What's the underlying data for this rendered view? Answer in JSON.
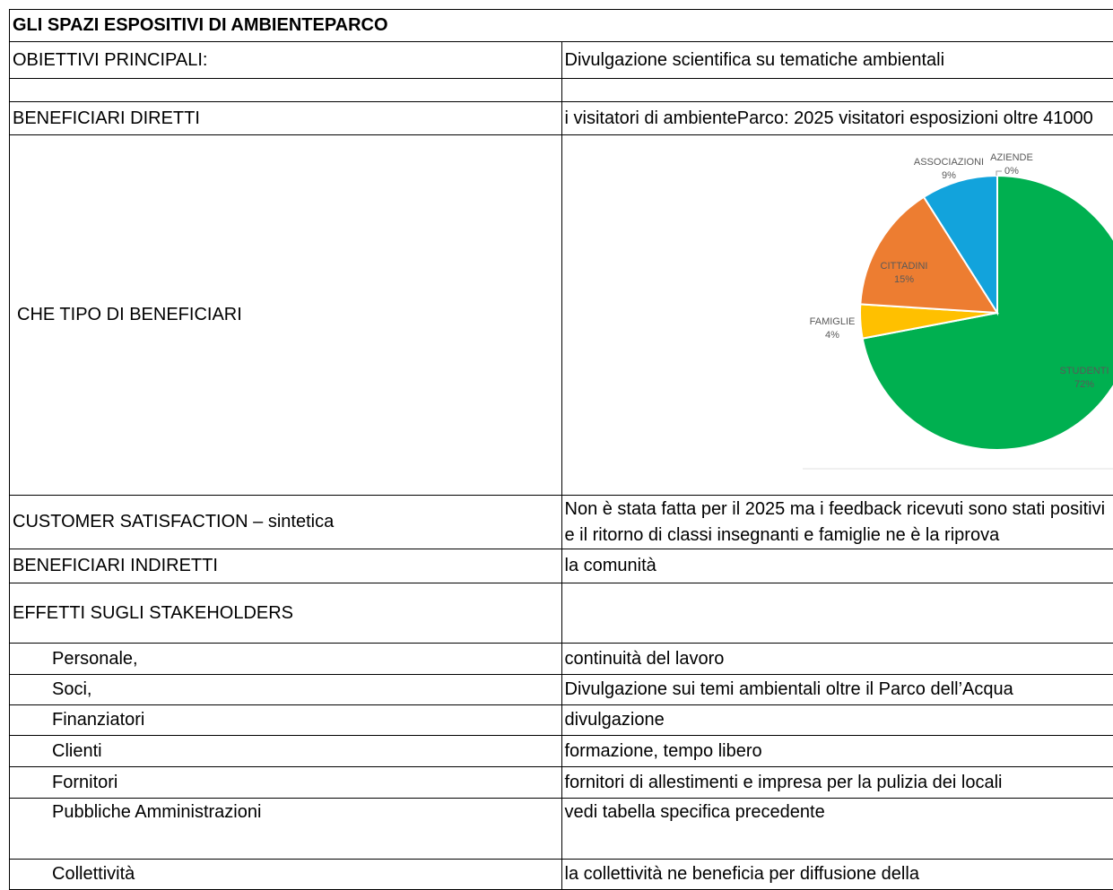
{
  "title": "GLI SPAZI ESPOSITIVI DI AMBIENTEPARCO",
  "rows": [
    [
      "OBIETTIVI PRINCIPALI:",
      "Divulgazione scientifica su tematiche ambientali"
    ],
    [
      "BENEFICIARI DIRETTI",
      "i visitatori di ambienteParco: 2025 visitatori esposizioni oltre 41000"
    ],
    [
      "CHE TIPO DI BENEFICIARI"
    ],
    [
      "CUSTOMER SATISFACTION – sintetica",
      "Non è stata fatta per il 2025 ma i feedback ricevuti sono stati positivi e il ritorno di classi insegnanti e famiglie ne è la riprova"
    ],
    [
      "BENEFICIARI INDIRETTI",
      "la comunità"
    ],
    [
      "EFFETTI SUGLI STAKEHOLDERS"
    ],
    [
      "Personale,",
      "continuità del lavoro"
    ],
    [
      "Soci,",
      "Divulgazione sui temi ambientali oltre il Parco dell’Acqua"
    ],
    [
      "Finanziatori",
      "divulgazione"
    ],
    [
      "Clienti",
      "formazione, tempo libero"
    ],
    [
      "Fornitori",
      "fornitori di allestimenti e impresa per la pulizia dei locali"
    ],
    [
      "Pubbliche Amministrazioni",
      "vedi tabella specifica precedente"
    ],
    [
      "Collettività",
      "la collettività ne beneficia per diffusione della"
    ]
  ],
  "chart_data": {
    "type": "pie",
    "categories": [
      "STUDENTI",
      "FAMIGLIE",
      "CITTADINI",
      "ASSOCIAZIONI",
      "AZIENDE"
    ],
    "values": [
      72,
      4,
      15,
      9,
      0
    ],
    "value_labels": [
      "72%",
      "4%",
      "15%",
      "9%",
      "0%"
    ],
    "colors": [
      "#00b050",
      "#ffc000",
      "#ed7d31",
      "#12a3dc",
      "#a020a0"
    ]
  }
}
